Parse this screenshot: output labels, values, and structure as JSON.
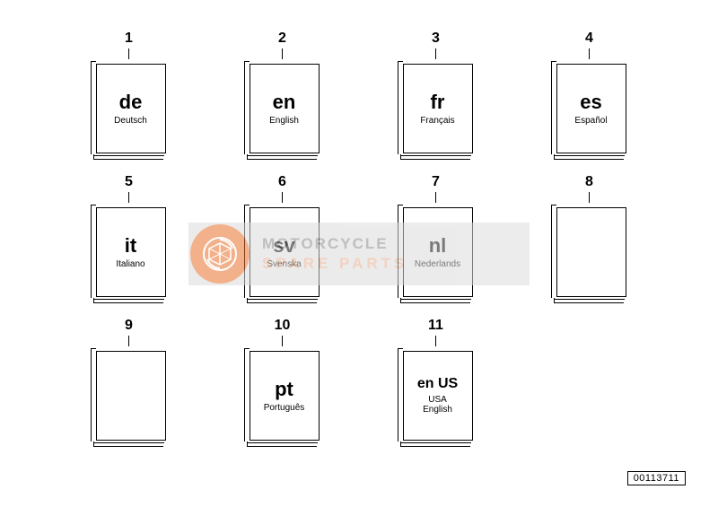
{
  "part_number": "00113711",
  "watermark": {
    "line1": "MOTORCYCLE",
    "line2": "SPARE PARTS"
  },
  "code_fontsize": 22,
  "enus_fontsize": 16,
  "cells": [
    {
      "num": "1",
      "code": "de",
      "lang": "Deutsch"
    },
    {
      "num": "2",
      "code": "en",
      "lang": "English"
    },
    {
      "num": "3",
      "code": "fr",
      "lang": "Français"
    },
    {
      "num": "4",
      "code": "es",
      "lang": "Español"
    },
    {
      "num": "5",
      "code": "it",
      "lang": "Italiano"
    },
    {
      "num": "6",
      "code": "sv",
      "lang": "Svenska"
    },
    {
      "num": "7",
      "code": "nl",
      "lang": "Nederlands"
    },
    {
      "num": "8",
      "code": "",
      "lang": ""
    },
    {
      "num": "9",
      "code": "",
      "lang": ""
    },
    {
      "num": "10",
      "code": "pt",
      "lang": "Português"
    },
    {
      "num": "11",
      "code": "en US",
      "lang": "USA\nEnglish",
      "small": true
    }
  ]
}
